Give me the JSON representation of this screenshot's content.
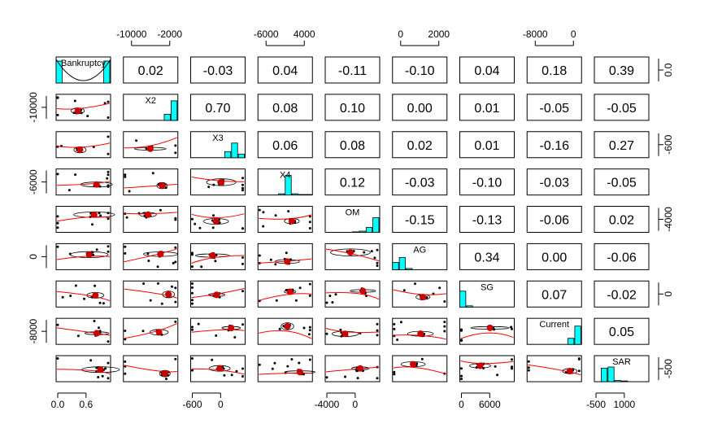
{
  "chart_data": {
    "type": "scatter",
    "variables": [
      "Bankruptcy",
      "X2",
      "X3",
      "X4",
      "OM",
      "AG",
      "SG",
      "Current",
      "SAR"
    ],
    "correlations": [
      [
        null,
        "0.02",
        "-0.03",
        "0.04",
        "-0.11",
        "-0.10",
        "0.04",
        "0.18",
        "0.39"
      ],
      [
        null,
        null,
        "0.70",
        "0.08",
        "0.10",
        "0.00",
        "0.01",
        "-0.05",
        "-0.05"
      ],
      [
        null,
        null,
        null,
        "0.06",
        "0.08",
        "0.02",
        "0.01",
        "-0.16",
        "0.27"
      ],
      [
        null,
        null,
        null,
        null,
        "0.12",
        "-0.03",
        "-0.10",
        "-0.03",
        "-0.05"
      ],
      [
        null,
        null,
        null,
        null,
        null,
        "-0.15",
        "-0.13",
        "-0.06",
        "0.02"
      ],
      [
        null,
        null,
        null,
        null,
        null,
        null,
        "0.34",
        "0.00",
        "-0.06"
      ],
      [
        null,
        null,
        null,
        null,
        null,
        null,
        null,
        "0.07",
        "-0.02"
      ],
      [
        null,
        null,
        null,
        null,
        null,
        null,
        null,
        null,
        "0.05"
      ],
      [
        null,
        null,
        null,
        null,
        null,
        null,
        null,
        null,
        null
      ]
    ],
    "top_axis": [
      {
        "col": 1,
        "ticks": [
          "-10000",
          "-2000"
        ]
      },
      {
        "col": 3,
        "ticks": [
          "-6000",
          "4000"
        ]
      },
      {
        "col": 5,
        "ticks": [
          "0",
          "2000"
        ]
      },
      {
        "col": 7,
        "ticks": [
          "-8000",
          "0"
        ]
      }
    ],
    "bottom_axis": [
      {
        "col": 0,
        "ticks": [
          "0.0",
          "0.6"
        ]
      },
      {
        "col": 2,
        "ticks": [
          "-600",
          "0"
        ]
      },
      {
        "col": 4,
        "ticks": [
          "-4000",
          "0"
        ]
      },
      {
        "col": 6,
        "ticks": [
          "0",
          "6000"
        ]
      },
      {
        "col": 8,
        "ticks": [
          "-500",
          "1000"
        ]
      }
    ],
    "left_axis": [
      {
        "row": 1,
        "ticks": [
          "-10000"
        ]
      },
      {
        "row": 3,
        "ticks": [
          "-6000"
        ]
      },
      {
        "row": 5,
        "ticks": [
          "0"
        ]
      },
      {
        "row": 7,
        "ticks": [
          "-8000"
        ]
      }
    ],
    "right_axis": [
      {
        "row": 0,
        "ticks": [
          "0.0"
        ]
      },
      {
        "row": 2,
        "ticks": [
          "-600"
        ]
      },
      {
        "row": 4,
        "ticks": [
          "-4000"
        ]
      },
      {
        "row": 6,
        "ticks": [
          "0"
        ]
      },
      {
        "row": 8,
        "ticks": [
          "-500"
        ]
      }
    ],
    "histograms": [
      [
        0.9,
        0,
        0,
        0,
        0,
        0,
        0,
        0.9
      ],
      [
        0,
        0,
        0,
        0,
        0,
        0,
        0.25,
        0.8
      ],
      [
        0,
        0,
        0,
        0,
        0,
        0.25,
        0.6,
        0.15
      ],
      [
        0,
        0,
        0,
        0.05,
        0.8,
        0.05,
        0.02,
        0.02
      ],
      [
        0,
        0,
        0,
        0,
        0.02,
        0.05,
        0.2,
        0.6
      ],
      [
        0.3,
        0.5,
        0.05,
        0,
        0,
        0,
        0,
        0
      ],
      [
        0.65,
        0.05,
        0,
        0,
        0,
        0,
        0,
        0
      ],
      [
        0,
        0,
        0,
        0,
        0,
        0,
        0.25,
        0.75
      ],
      [
        0,
        0.55,
        0.6,
        0.05,
        0.03,
        0,
        0,
        0
      ]
    ],
    "grid": false,
    "ellipses": true,
    "smoother": true
  }
}
